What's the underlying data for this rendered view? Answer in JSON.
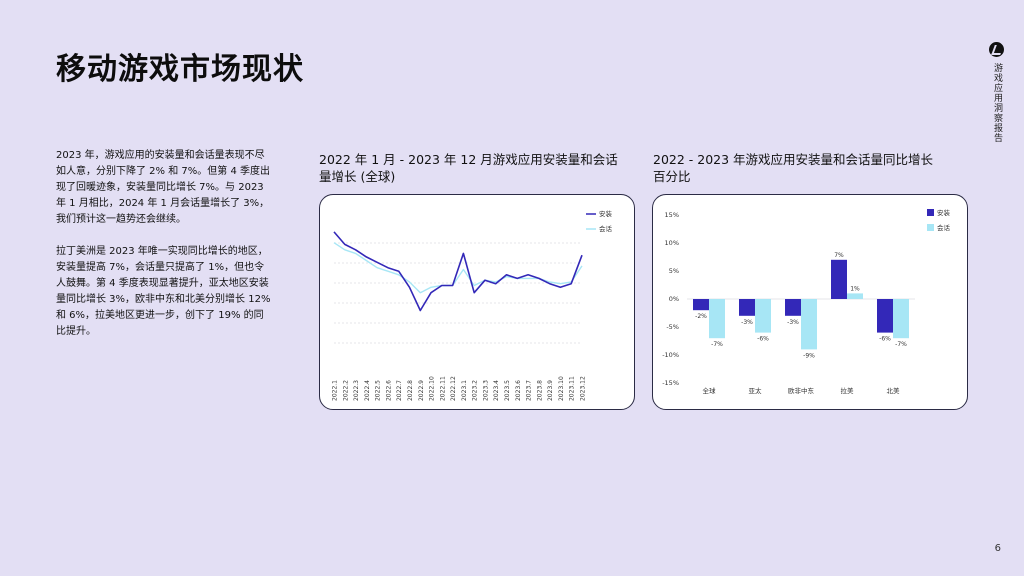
{
  "page": {
    "title": "移动游戏市场现状",
    "side_label": "游戏应用洞察报告",
    "page_number": "6"
  },
  "text": {
    "paragraph1": "2023 年，游戏应用的安装量和会话量表现不尽如人意，分别下降了 2% 和 7%。但第 4 季度出现了回暖迹象，安装量同比增长 7%。与 2023 年 1 月相比，2024 年 1 月会话量增长了 3%，我们预计这一趋势还会继续。",
    "paragraph2": "拉丁美洲是 2023 年唯一实现同比增长的地区，安装量提高 7%，会话量只提高了 1%，但也令人鼓舞。第 4 季度表现显著提升，亚太地区安装量同比增长 3%，欧非中东和北美分别增长 12% 和 6%，拉美地区更进一步，创下了 19% 的同比提升。"
  },
  "colors": {
    "background": "#e3dff4",
    "installs": "#3328b8",
    "sessions": "#a7e6f5"
  },
  "chart_data": [
    {
      "type": "line",
      "title": "2022 年 1 月 - 2023 年 12 月游戏应用安装量和会话量增长 (全球)",
      "x": [
        "2022.1",
        "2022.2",
        "2022.3",
        "2022.4",
        "2022.5",
        "2022.6",
        "2022.7",
        "2022.8",
        "2022.9",
        "2022.10",
        "2022.11",
        "2022.12",
        "2023.1",
        "2023.2",
        "2023.3",
        "2023.4",
        "2023.5",
        "2023.6",
        "2023.7",
        "2023.8",
        "2023.9",
        "2023.10",
        "2023.11",
        "2023.12"
      ],
      "legend_position": "top-right",
      "grid": true,
      "series": [
        {
          "name": "安装",
          "values": [
            1.0,
            0.93,
            0.9,
            0.86,
            0.83,
            0.8,
            0.78,
            0.69,
            0.56,
            0.66,
            0.7,
            0.7,
            0.88,
            0.66,
            0.73,
            0.71,
            0.76,
            0.74,
            0.76,
            0.74,
            0.71,
            0.69,
            0.71,
            0.87
          ]
        },
        {
          "name": "会话",
          "values": [
            0.94,
            0.9,
            0.88,
            0.84,
            0.8,
            0.78,
            0.76,
            0.72,
            0.66,
            0.69,
            0.7,
            0.7,
            0.79,
            0.7,
            0.73,
            0.72,
            0.75,
            0.74,
            0.74,
            0.74,
            0.72,
            0.71,
            0.72,
            0.81
          ]
        }
      ],
      "ylim": [
        0.3,
        1.05
      ]
    },
    {
      "type": "bar",
      "title": "2022 - 2023 年游戏应用安装量和会话量同比增长百分比",
      "categories": [
        "全球",
        "亚太",
        "欧非中东",
        "拉美",
        "北美"
      ],
      "series": [
        {
          "name": "安装",
          "values": [
            -2,
            -3,
            -3,
            7,
            -6
          ],
          "labels": [
            "-2%",
            "-3%",
            "-3%",
            "7%",
            "-6%"
          ]
        },
        {
          "name": "会话",
          "values": [
            -7,
            -6,
            -9,
            1,
            -7
          ],
          "labels": [
            "-7%",
            "-6%",
            "-9%",
            "1%",
            "-7%"
          ]
        }
      ],
      "yticks": [
        15,
        10,
        5,
        0,
        -5,
        -10,
        -15
      ],
      "ytick_labels": [
        "15%",
        "10%",
        "5%",
        "0%",
        "-5%",
        "-10%",
        "-15%"
      ],
      "ylim": [
        -15,
        15
      ],
      "legend_position": "top-right",
      "grid": false
    }
  ]
}
